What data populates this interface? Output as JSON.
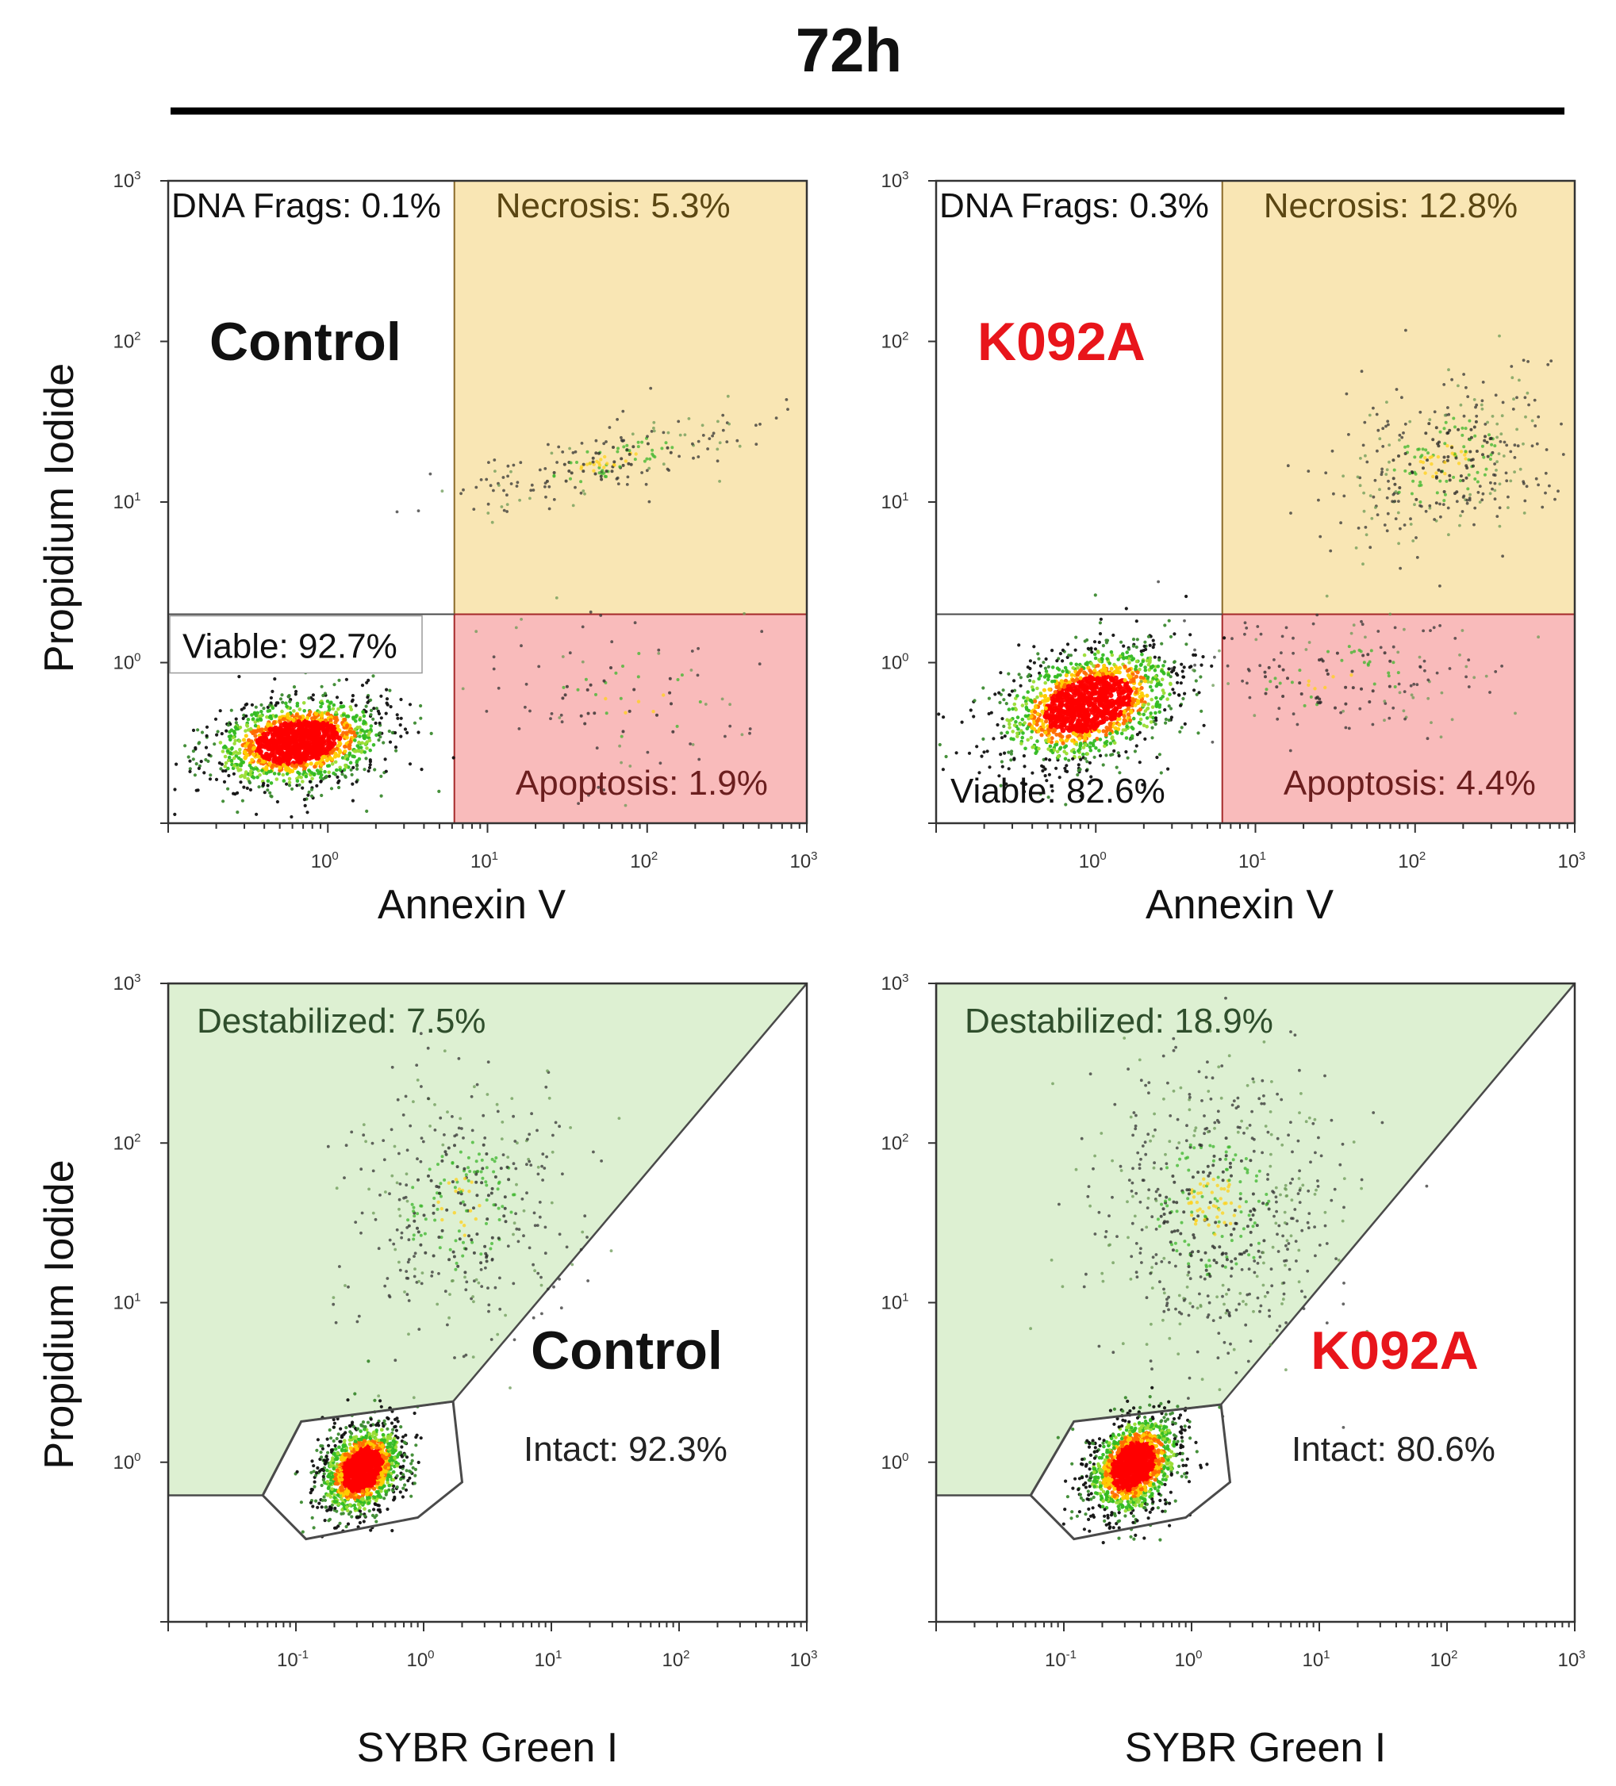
{
  "figure": {
    "title": "72h",
    "colors": {
      "necrosis_fill": "#f9e6b4",
      "apoptosis_fill": "#f9bbbb",
      "destabilized_fill": "#ddf0d2",
      "gate_line": "#4a4a4a",
      "control_label": "#111111",
      "k092a_label": "#e8151b"
    }
  },
  "chart_data": [
    {
      "type": "scatter",
      "panel": "top-left",
      "sample": "Control",
      "xlabel": "Annexin V",
      "ylabel": "Propidium Iodide",
      "xscale": "log",
      "yscale": "log",
      "xlim": [
        0.1,
        1000
      ],
      "ylim": [
        0.1,
        1000
      ],
      "x_ticks": [
        {
          "base": "10",
          "exp": "0",
          "value": 1
        },
        {
          "base": "10",
          "exp": "1",
          "value": 10
        },
        {
          "base": "10",
          "exp": "2",
          "value": 100
        },
        {
          "base": "10",
          "exp": "3",
          "value": 1000
        }
      ],
      "y_ticks": [
        {
          "base": "10",
          "exp": "0",
          "value": 1
        },
        {
          "base": "10",
          "exp": "1",
          "value": 10
        },
        {
          "base": "10",
          "exp": "2",
          "value": 100
        },
        {
          "base": "10",
          "exp": "3",
          "value": 1000
        }
      ],
      "quadrant_split": {
        "x": 6.2,
        "y": 2.0
      },
      "gates": [
        {
          "name": "DNA Frags",
          "label": "DNA Frags: 0.1%",
          "percent": 0.1,
          "region": "upper-left"
        },
        {
          "name": "Necrosis",
          "label": "Necrosis: 5.3%",
          "percent": 5.3,
          "region": "upper-right"
        },
        {
          "name": "Viable",
          "label": "Viable: 92.7%",
          "percent": 92.7,
          "region": "lower-left"
        },
        {
          "name": "Apoptosis",
          "label": "Apoptosis: 1.9%",
          "percent": 1.9,
          "region": "lower-right"
        }
      ],
      "populations": [
        {
          "name": "main",
          "center": [
            0.65,
            0.32
          ],
          "spread_decades": [
            0.28,
            0.14
          ],
          "rotation": 0.15,
          "count": 1400
        },
        {
          "name": "necrotic-band",
          "center": [
            60,
            18
          ],
          "spread_decades": [
            0.45,
            0.1
          ],
          "rotation": 0.25,
          "count": 220
        },
        {
          "name": "apoptotic",
          "center": [
            80,
            0.6
          ],
          "spread_decades": [
            0.45,
            0.3
          ],
          "rotation": 0.0,
          "count": 100
        }
      ]
    },
    {
      "type": "scatter",
      "panel": "top-right",
      "sample": "K092A",
      "xlabel": "Annexin V",
      "ylabel": "Propidium Iodide",
      "xscale": "log",
      "yscale": "log",
      "xlim": [
        0.1,
        1000
      ],
      "ylim": [
        0.1,
        1000
      ],
      "x_ticks": [
        {
          "base": "10",
          "exp": "0",
          "value": 1
        },
        {
          "base": "10",
          "exp": "1",
          "value": 10
        },
        {
          "base": "10",
          "exp": "2",
          "value": 100
        },
        {
          "base": "10",
          "exp": "3",
          "value": 1000
        }
      ],
      "y_ticks": [
        {
          "base": "10",
          "exp": "0",
          "value": 1
        },
        {
          "base": "10",
          "exp": "1",
          "value": 10
        },
        {
          "base": "10",
          "exp": "2",
          "value": 100
        },
        {
          "base": "10",
          "exp": "3",
          "value": 1000
        }
      ],
      "quadrant_split": {
        "x": 6.2,
        "y": 2.0
      },
      "gates": [
        {
          "name": "DNA Frags",
          "label": "DNA Frags: 0.3%",
          "percent": 0.3,
          "region": "upper-left"
        },
        {
          "name": "Necrosis",
          "label": "Necrosis: 12.8%",
          "percent": 12.8,
          "region": "upper-right"
        },
        {
          "name": "Viable",
          "label": "Viable: 82.6%",
          "percent": 82.6,
          "region": "lower-left"
        },
        {
          "name": "Apoptosis",
          "label": "Apoptosis: 4.4%",
          "percent": 4.4,
          "region": "lower-right"
        }
      ],
      "populations": [
        {
          "name": "main",
          "center": [
            0.9,
            0.55
          ],
          "spread_decades": [
            0.3,
            0.17
          ],
          "rotation": 0.35,
          "count": 1400
        },
        {
          "name": "necrotic-cloud",
          "center": [
            150,
            18
          ],
          "spread_decades": [
            0.35,
            0.25
          ],
          "rotation": 0.4,
          "count": 380
        },
        {
          "name": "apoptotic",
          "center": [
            30,
            0.8
          ],
          "spread_decades": [
            0.45,
            0.2
          ],
          "rotation": 0.1,
          "count": 180
        }
      ]
    },
    {
      "type": "scatter",
      "panel": "bottom-left",
      "sample": "Control",
      "xlabel": "SYBR Green I",
      "ylabel": "Propidium Iodide",
      "xscale": "log",
      "yscale": "log",
      "xlim": [
        0.01,
        1000
      ],
      "ylim": [
        0.1,
        1000
      ],
      "x_ticks": [
        {
          "base": "10",
          "exp": "-1",
          "value": 0.1
        },
        {
          "base": "10",
          "exp": "0",
          "value": 1
        },
        {
          "base": "10",
          "exp": "1",
          "value": 10
        },
        {
          "base": "10",
          "exp": "2",
          "value": 100
        },
        {
          "base": "10",
          "exp": "3",
          "value": 1000
        }
      ],
      "y_ticks": [
        {
          "base": "10",
          "exp": "0",
          "value": 1
        },
        {
          "base": "10",
          "exp": "1",
          "value": 10
        },
        {
          "base": "10",
          "exp": "2",
          "value": 100
        },
        {
          "base": "10",
          "exp": "3",
          "value": 1000
        }
      ],
      "gates": [
        {
          "name": "Destabilized",
          "label": "Destabilized: 7.5%",
          "percent": 7.5,
          "region": "upper-left"
        },
        {
          "name": "Intact",
          "label": "Intact: 92.3%",
          "percent": 92.3,
          "region": "polygon"
        }
      ],
      "destabilized_gate": [
        [
          0.01,
          0.62
        ],
        [
          0.055,
          0.62
        ],
        [
          0.11,
          1.8
        ],
        [
          1.7,
          2.4
        ],
        [
          1000,
          1000
        ],
        [
          0.01,
          1000
        ]
      ],
      "intact_gate": [
        [
          0.055,
          0.62
        ],
        [
          0.11,
          1.8
        ],
        [
          1.7,
          2.4
        ],
        [
          2.0,
          0.75
        ],
        [
          0.9,
          0.45
        ],
        [
          0.12,
          0.33
        ]
      ],
      "populations": [
        {
          "name": "main",
          "center": [
            0.33,
            0.9
          ],
          "spread_decades": [
            0.18,
            0.13
          ],
          "rotation": 0.6,
          "count": 1300
        },
        {
          "name": "streak",
          "center": [
            2.0,
            40
          ],
          "spread_decades": [
            0.45,
            0.4
          ],
          "rotation": 0.75,
          "count": 420
        }
      ]
    },
    {
      "type": "scatter",
      "panel": "bottom-right",
      "sample": "K092A",
      "xlabel": "SYBR Green I",
      "ylabel": "Propidium Iodide",
      "xscale": "log",
      "yscale": "log",
      "xlim": [
        0.01,
        1000
      ],
      "ylim": [
        0.1,
        1000
      ],
      "x_ticks": [
        {
          "base": "10",
          "exp": "-1",
          "value": 0.1
        },
        {
          "base": "10",
          "exp": "0",
          "value": 1
        },
        {
          "base": "10",
          "exp": "1",
          "value": 10
        },
        {
          "base": "10",
          "exp": "2",
          "value": 100
        },
        {
          "base": "10",
          "exp": "3",
          "value": 1000
        }
      ],
      "y_ticks": [
        {
          "base": "10",
          "exp": "0",
          "value": 1
        },
        {
          "base": "10",
          "exp": "1",
          "value": 10
        },
        {
          "base": "10",
          "exp": "2",
          "value": 100
        },
        {
          "base": "10",
          "exp": "3",
          "value": 1000
        }
      ],
      "gates": [
        {
          "name": "Destabilized",
          "label": "Destabilized: 18.9%",
          "percent": 18.9,
          "region": "upper-left"
        },
        {
          "name": "Intact",
          "label": "Intact: 80.6%",
          "percent": 80.6,
          "region": "polygon"
        }
      ],
      "destabilized_gate": [
        [
          0.01,
          0.62
        ],
        [
          0.055,
          0.62
        ],
        [
          0.12,
          1.8
        ],
        [
          1.7,
          2.3
        ],
        [
          1000,
          1000
        ],
        [
          0.01,
          1000
        ]
      ],
      "intact_gate": [
        [
          0.055,
          0.62
        ],
        [
          0.12,
          1.8
        ],
        [
          1.7,
          2.3
        ],
        [
          2.0,
          0.75
        ],
        [
          0.9,
          0.45
        ],
        [
          0.12,
          0.33
        ]
      ],
      "populations": [
        {
          "name": "main",
          "center": [
            0.35,
            0.95
          ],
          "spread_decades": [
            0.2,
            0.14
          ],
          "rotation": 0.6,
          "count": 1300
        },
        {
          "name": "streak",
          "center": [
            1.5,
            40
          ],
          "spread_decades": [
            0.45,
            0.45
          ],
          "rotation": 0.75,
          "count": 650
        }
      ]
    }
  ]
}
